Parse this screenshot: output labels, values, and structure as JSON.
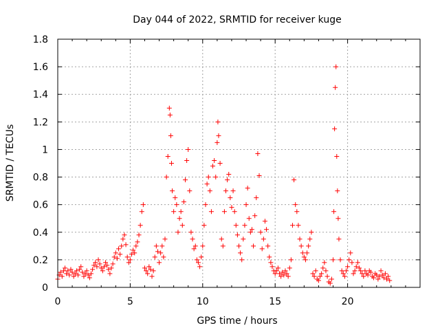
{
  "chart_data": {
    "type": "scatter",
    "title": "Day 044 of 2022, SRMTID for receiver kuge",
    "xlabel": "GPS time / hours",
    "ylabel": "SRMTID / TECUs",
    "xlim": [
      0,
      25
    ],
    "ylim": [
      0,
      1.8
    ],
    "xticks": [
      0,
      5,
      10,
      15,
      20
    ],
    "xtick_labels": [
      "0",
      "5",
      "10",
      "15",
      "20"
    ],
    "yticks": [
      0,
      0.2,
      0.4,
      0.6,
      0.8,
      1,
      1.2,
      1.4,
      1.6,
      1.8
    ],
    "ytick_labels": [
      "0",
      "0.2",
      "0.4",
      "0.6",
      "0.8",
      "1",
      "1.2",
      "1.4",
      "1.6",
      "1.8"
    ],
    "grid": true,
    "marker": "+",
    "marker_color": "#ff0000",
    "series": [
      {
        "name": "SRMTID",
        "points": [
          [
            0.0,
            0.06
          ],
          [
            0.1,
            0.09
          ],
          [
            0.2,
            0.11
          ],
          [
            0.3,
            0.08
          ],
          [
            0.4,
            0.12
          ],
          [
            0.5,
            0.14
          ],
          [
            0.6,
            0.1
          ],
          [
            0.7,
            0.12
          ],
          [
            0.8,
            0.09
          ],
          [
            0.9,
            0.13
          ],
          [
            1.0,
            0.11
          ],
          [
            1.1,
            0.08
          ],
          [
            1.2,
            0.1
          ],
          [
            1.3,
            0.12
          ],
          [
            1.4,
            0.09
          ],
          [
            1.5,
            0.13
          ],
          [
            1.6,
            0.15
          ],
          [
            1.7,
            0.11
          ],
          [
            1.8,
            0.08
          ],
          [
            1.9,
            0.1
          ],
          [
            2.0,
            0.12
          ],
          [
            2.1,
            0.09
          ],
          [
            2.2,
            0.07
          ],
          [
            2.3,
            0.1
          ],
          [
            2.4,
            0.13
          ],
          [
            2.5,
            0.16
          ],
          [
            2.6,
            0.18
          ],
          [
            2.7,
            0.15
          ],
          [
            2.8,
            0.2
          ],
          [
            2.9,
            0.17
          ],
          [
            3.0,
            0.14
          ],
          [
            3.1,
            0.12
          ],
          [
            3.2,
            0.15
          ],
          [
            3.3,
            0.18
          ],
          [
            3.4,
            0.16
          ],
          [
            3.5,
            0.13
          ],
          [
            3.6,
            0.1
          ],
          [
            3.7,
            0.14
          ],
          [
            3.8,
            0.17
          ],
          [
            3.9,
            0.22
          ],
          [
            4.0,
            0.25
          ],
          [
            4.1,
            0.21
          ],
          [
            4.2,
            0.28
          ],
          [
            4.3,
            0.24
          ],
          [
            4.4,
            0.3
          ],
          [
            4.5,
            0.35
          ],
          [
            4.6,
            0.38
          ],
          [
            4.7,
            0.31
          ],
          [
            4.8,
            0.22
          ],
          [
            4.9,
            0.18
          ],
          [
            5.0,
            0.2
          ],
          [
            5.1,
            0.24
          ],
          [
            5.2,
            0.27
          ],
          [
            5.3,
            0.25
          ],
          [
            5.4,
            0.3
          ],
          [
            5.5,
            0.33
          ],
          [
            5.6,
            0.38
          ],
          [
            5.7,
            0.45
          ],
          [
            5.8,
            0.55
          ],
          [
            5.9,
            0.6
          ],
          [
            6.0,
            0.14
          ],
          [
            6.1,
            0.12
          ],
          [
            6.2,
            0.1
          ],
          [
            6.3,
            0.15
          ],
          [
            6.4,
            0.13
          ],
          [
            6.5,
            0.08
          ],
          [
            6.6,
            0.12
          ],
          [
            6.7,
            0.22
          ],
          [
            6.8,
            0.3
          ],
          [
            6.9,
            0.26
          ],
          [
            7.0,
            0.18
          ],
          [
            7.1,
            0.25
          ],
          [
            7.2,
            0.3
          ],
          [
            7.3,
            0.22
          ],
          [
            7.4,
            0.35
          ],
          [
            7.5,
            0.8
          ],
          [
            7.6,
            0.95
          ],
          [
            7.7,
            1.3
          ],
          [
            7.75,
            1.25
          ],
          [
            7.8,
            1.1
          ],
          [
            7.85,
            0.9
          ],
          [
            7.9,
            0.7
          ],
          [
            8.0,
            0.55
          ],
          [
            8.1,
            0.65
          ],
          [
            8.2,
            0.6
          ],
          [
            8.3,
            0.4
          ],
          [
            8.4,
            0.5
          ],
          [
            8.5,
            0.55
          ],
          [
            8.6,
            0.45
          ],
          [
            8.7,
            0.62
          ],
          [
            8.8,
            0.78
          ],
          [
            8.9,
            0.92
          ],
          [
            9.0,
            1.0
          ],
          [
            9.1,
            0.7
          ],
          [
            9.2,
            0.4
          ],
          [
            9.3,
            0.35
          ],
          [
            9.4,
            0.28
          ],
          [
            9.5,
            0.3
          ],
          [
            9.6,
            0.2
          ],
          [
            9.7,
            0.18
          ],
          [
            9.8,
            0.15
          ],
          [
            9.9,
            0.22
          ],
          [
            10.0,
            0.3
          ],
          [
            10.1,
            0.45
          ],
          [
            10.2,
            0.6
          ],
          [
            10.3,
            0.75
          ],
          [
            10.4,
            0.8
          ],
          [
            10.5,
            0.7
          ],
          [
            10.6,
            0.55
          ],
          [
            10.7,
            0.88
          ],
          [
            10.8,
            0.92
          ],
          [
            10.9,
            0.8
          ],
          [
            11.0,
            1.05
          ],
          [
            11.05,
            1.2
          ],
          [
            11.1,
            1.1
          ],
          [
            11.2,
            0.9
          ],
          [
            11.3,
            0.35
          ],
          [
            11.4,
            0.3
          ],
          [
            11.5,
            0.55
          ],
          [
            11.6,
            0.7
          ],
          [
            11.7,
            0.78
          ],
          [
            11.8,
            0.82
          ],
          [
            11.9,
            0.65
          ],
          [
            12.0,
            0.58
          ],
          [
            12.1,
            0.7
          ],
          [
            12.2,
            0.55
          ],
          [
            12.3,
            0.45
          ],
          [
            12.4,
            0.38
          ],
          [
            12.5,
            0.3
          ],
          [
            12.6,
            0.25
          ],
          [
            12.7,
            0.2
          ],
          [
            12.8,
            0.35
          ],
          [
            12.9,
            0.45
          ],
          [
            13.0,
            0.6
          ],
          [
            13.1,
            0.72
          ],
          [
            13.2,
            0.5
          ],
          [
            13.3,
            0.4
          ],
          [
            13.4,
            0.42
          ],
          [
            13.5,
            0.3
          ],
          [
            13.6,
            0.52
          ],
          [
            13.7,
            0.65
          ],
          [
            13.8,
            0.97
          ],
          [
            13.9,
            0.81
          ],
          [
            14.0,
            0.4
          ],
          [
            14.1,
            0.28
          ],
          [
            14.2,
            0.35
          ],
          [
            14.3,
            0.48
          ],
          [
            14.4,
            0.42
          ],
          [
            14.5,
            0.3
          ],
          [
            14.6,
            0.22
          ],
          [
            14.7,
            0.18
          ],
          [
            14.8,
            0.15
          ],
          [
            14.9,
            0.12
          ],
          [
            15.0,
            0.1
          ],
          [
            15.1,
            0.12
          ],
          [
            15.2,
            0.14
          ],
          [
            15.3,
            0.1
          ],
          [
            15.4,
            0.08
          ],
          [
            15.5,
            0.11
          ],
          [
            15.6,
            0.09
          ],
          [
            15.7,
            0.12
          ],
          [
            15.8,
            0.1
          ],
          [
            15.9,
            0.08
          ],
          [
            16.0,
            0.14
          ],
          [
            16.1,
            0.2
          ],
          [
            16.2,
            0.45
          ],
          [
            16.3,
            0.78
          ],
          [
            16.4,
            0.6
          ],
          [
            16.5,
            0.55
          ],
          [
            16.6,
            0.45
          ],
          [
            16.7,
            0.35
          ],
          [
            16.8,
            0.3
          ],
          [
            16.9,
            0.25
          ],
          [
            17.0,
            0.22
          ],
          [
            17.1,
            0.2
          ],
          [
            17.2,
            0.25
          ],
          [
            17.3,
            0.3
          ],
          [
            17.4,
            0.35
          ],
          [
            17.5,
            0.4
          ],
          [
            17.6,
            0.1
          ],
          [
            17.7,
            0.08
          ],
          [
            17.8,
            0.12
          ],
          [
            17.9,
            0.06
          ],
          [
            18.0,
            0.05
          ],
          [
            18.1,
            0.08
          ],
          [
            18.2,
            0.1
          ],
          [
            18.3,
            0.14
          ],
          [
            18.4,
            0.18
          ],
          [
            18.5,
            0.12
          ],
          [
            18.6,
            0.08
          ],
          [
            18.7,
            0.04
          ],
          [
            18.8,
            0.03
          ],
          [
            18.9,
            0.06
          ],
          [
            19.0,
            0.2
          ],
          [
            19.05,
            0.55
          ],
          [
            19.1,
            1.15
          ],
          [
            19.15,
            1.45
          ],
          [
            19.2,
            1.6
          ],
          [
            19.25,
            0.95
          ],
          [
            19.3,
            0.7
          ],
          [
            19.35,
            0.5
          ],
          [
            19.4,
            0.35
          ],
          [
            19.5,
            0.2
          ],
          [
            19.6,
            0.12
          ],
          [
            19.7,
            0.1
          ],
          [
            19.8,
            0.08
          ],
          [
            19.9,
            0.12
          ],
          [
            20.0,
            0.15
          ],
          [
            20.1,
            0.2
          ],
          [
            20.2,
            0.25
          ],
          [
            20.3,
            0.18
          ],
          [
            20.4,
            0.1
          ],
          [
            20.5,
            0.12
          ],
          [
            20.6,
            0.15
          ],
          [
            20.7,
            0.18
          ],
          [
            20.8,
            0.14
          ],
          [
            20.9,
            0.12
          ],
          [
            21.0,
            0.1
          ],
          [
            21.1,
            0.08
          ],
          [
            21.2,
            0.12
          ],
          [
            21.3,
            0.1
          ],
          [
            21.4,
            0.09
          ],
          [
            21.5,
            0.12
          ],
          [
            21.6,
            0.11
          ],
          [
            21.7,
            0.08
          ],
          [
            21.8,
            0.07
          ],
          [
            21.9,
            0.1
          ],
          [
            22.0,
            0.09
          ],
          [
            22.1,
            0.06
          ],
          [
            22.2,
            0.08
          ],
          [
            22.3,
            0.12
          ],
          [
            22.4,
            0.09
          ],
          [
            22.5,
            0.07
          ],
          [
            22.6,
            0.1
          ],
          [
            22.7,
            0.06
          ],
          [
            22.8,
            0.08
          ],
          [
            22.9,
            0.05
          ]
        ]
      }
    ]
  }
}
